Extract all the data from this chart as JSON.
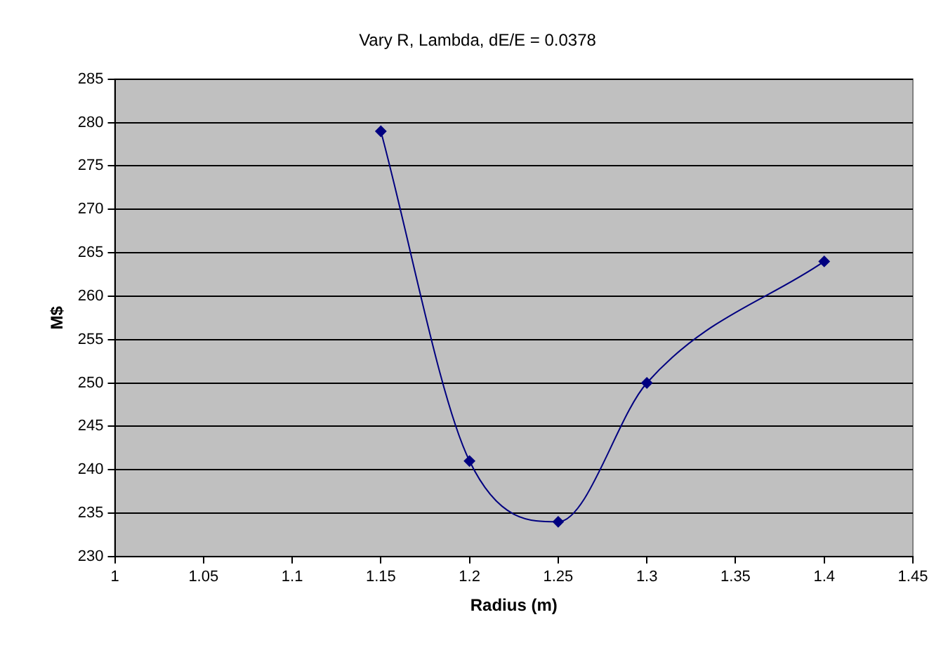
{
  "chart_data": {
    "type": "line",
    "title": "Vary R, Lambda, dE/E = 0.0378",
    "xlabel": "Radius (m)",
    "ylabel": "M$",
    "x": [
      1.15,
      1.2,
      1.25,
      1.3,
      1.4
    ],
    "series": [
      {
        "color": "#000080",
        "values": [
          279,
          241,
          234,
          250,
          264
        ]
      }
    ],
    "xlim": [
      1,
      1.45
    ],
    "xticks": [
      1,
      1.05,
      1.1,
      1.15,
      1.2,
      1.25,
      1.3,
      1.35,
      1.4,
      1.45
    ],
    "ylim": [
      230,
      285
    ],
    "yticks": [
      230,
      235,
      240,
      245,
      250,
      255,
      260,
      265,
      270,
      275,
      280,
      285
    ],
    "grid": "y",
    "legend": false,
    "marker": "diamond",
    "line_style": "solid"
  }
}
